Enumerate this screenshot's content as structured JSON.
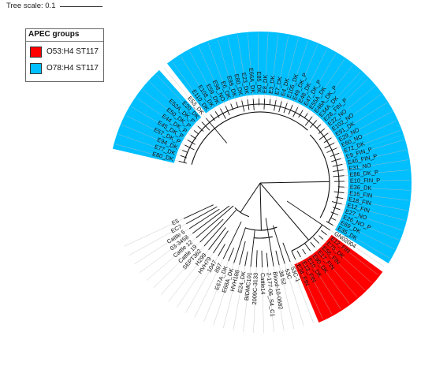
{
  "scale": {
    "label": "Tree scale: 0.1"
  },
  "legend": {
    "title": "APEC groups",
    "items": [
      {
        "label": "O53:H4 ST117",
        "color": "#ff0000"
      },
      {
        "label": "O78:H4 ST117",
        "color": "#00bfff"
      }
    ]
  },
  "colors": {
    "branch": "#111111",
    "guide": "#bbbbbb"
  },
  "tips": [
    "E5",
    "EC7",
    "Cattle 5",
    "03-3458",
    "Cattle 12",
    "Cattle 19",
    "SEPT362",
    "H299",
    "HVH79",
    "1047",
    "897",
    "E67A_DK",
    "E68A_DK",
    "HVH188",
    "E24_DK",
    "BIDMC101",
    "2009C-3133",
    "Cattle14",
    "2-177-06_S4_C1",
    "Blood-10-0682",
    "38 52",
    "53C",
    "53C-1",
    "E34_FIN",
    "E13_FIN",
    "E10_DK",
    "E90_DK",
    "E17_FIN",
    "E56_FIN",
    "E75_DK",
    "E12_FIN",
    "GN02004",
    "E35_DK",
    "E69_DK",
    "E26_NO_P",
    "E27_NO",
    "E12_FIN",
    "E18_FIN",
    "E16_FIN",
    "E36_DK",
    "E10_FIN_P",
    "E86_DK_P",
    "E31_NO",
    "E40_FIN_P",
    "E9_FIN_P",
    "E72_DK",
    "E60_NO",
    "E29_NO",
    "E91_DK",
    "E102_NO",
    "E22_NO",
    "E28_FIN_P",
    "E34A_DK",
    "E46A_DK_P",
    "E55A_DK",
    "E47_DK_P",
    "E48_DK",
    "E49_DK_P",
    "E105_DK",
    "E4_DK",
    "E7_DK",
    "E3_DK",
    "E8_DK",
    "E85_DK",
    "E66A_DK",
    "E23_DK",
    "E80_DK",
    "E99_DK",
    "E6_DK",
    "E98_NO",
    "E59_DK",
    "E108_DK",
    "E110_DK",
    "E53_DK",
    "E20_DK",
    "E52A_DK_P",
    "E50_DK_P",
    "E44_DK_P",
    "E45_DK_P",
    "E57_DK_P",
    "E94_DK",
    "E77_DK",
    "E80_DK"
  ],
  "clades": [
    {
      "group": "O53:H4 ST117",
      "from": 23,
      "to": 30
    },
    {
      "group": "O78:H4 ST117",
      "from": 32,
      "to": 44
    },
    {
      "group": "O78:H4 ST117",
      "from": 45,
      "to": 51
    },
    {
      "group": "O78:H4 ST117",
      "from": 52,
      "to": 72
    },
    {
      "group": "O78:H4 ST117",
      "from": 74,
      "to": 82
    }
  ]
}
